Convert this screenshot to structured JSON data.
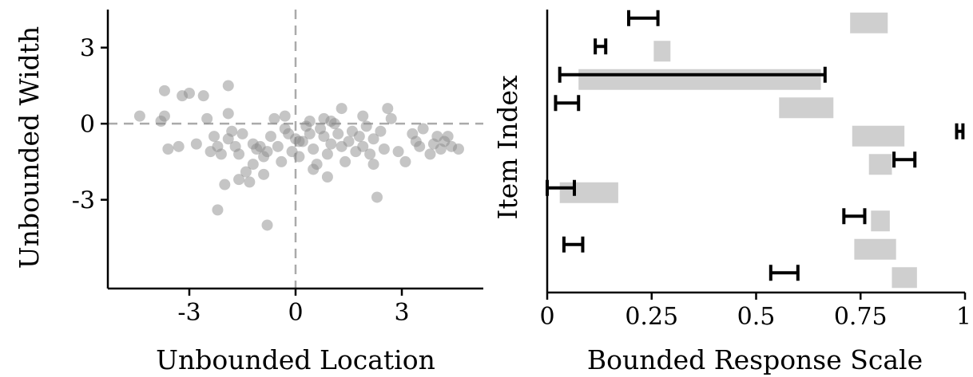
{
  "chart_data": [
    {
      "type": "scatter",
      "xlabel": "Unbounded Location",
      "ylabel": "Unbounded Width",
      "xlim": [
        -5.3,
        5.3
      ],
      "ylim": [
        -6.5,
        4.5
      ],
      "x_ticks": [
        -3,
        0,
        3
      ],
      "x_tick_labels": [
        "-3",
        "0",
        "3"
      ],
      "y_ticks": [
        3,
        0,
        -3
      ],
      "y_tick_labels": [
        "3",
        "0",
        "-3"
      ],
      "reference_lines": {
        "x": 0,
        "y": 0,
        "style": "dashed"
      },
      "point_color": "#8c8c8c",
      "points": [
        [
          -4.4,
          0.3
        ],
        [
          -3.8,
          0.1
        ],
        [
          -3.7,
          1.3
        ],
        [
          -3.6,
          -1.0
        ],
        [
          -3.7,
          0.3
        ],
        [
          -3.2,
          1.1
        ],
        [
          -3.0,
          1.2
        ],
        [
          -2.6,
          1.1
        ],
        [
          -2.5,
          0.2
        ],
        [
          -2.8,
          -0.8
        ],
        [
          -2.4,
          -1.1
        ],
        [
          -2.3,
          -0.5
        ],
        [
          -2.2,
          -0.9
        ],
        [
          -2.1,
          -1.2
        ],
        [
          -1.9,
          -0.6
        ],
        [
          -1.8,
          -0.3
        ],
        [
          -1.7,
          -0.9
        ],
        [
          -1.6,
          -1.2
        ],
        [
          -1.5,
          -0.4
        ],
        [
          -1.4,
          -1.9
        ],
        [
          -1.3,
          -2.3
        ],
        [
          -1.2,
          -0.8
        ],
        [
          -1.1,
          -1.0
        ],
        [
          -1.0,
          -0.9
        ],
        [
          -0.9,
          -1.3
        ],
        [
          -0.8,
          -1.1
        ],
        [
          -0.7,
          -0.5
        ],
        [
          -0.6,
          0.2
        ],
        [
          -0.5,
          -0.9
        ],
        [
          -0.4,
          -1.5
        ],
        [
          -0.3,
          -0.2
        ],
        [
          -0.2,
          -0.4
        ],
        [
          -0.1,
          -1.1
        ],
        [
          0.0,
          -0.6
        ],
        [
          0.1,
          -1.3
        ],
        [
          0.2,
          -0.7
        ],
        [
          0.3,
          -0.1
        ],
        [
          0.4,
          -0.4
        ],
        [
          0.5,
          -1.0
        ],
        [
          0.6,
          -1.6
        ],
        [
          0.7,
          -0.2
        ],
        [
          0.8,
          -0.5
        ],
        [
          0.9,
          -1.2
        ],
        [
          1.0,
          -0.8
        ],
        [
          1.1,
          0.0
        ],
        [
          1.2,
          -0.4
        ],
        [
          1.3,
          -0.9
        ],
        [
          1.4,
          -1.5
        ],
        [
          1.5,
          -0.7
        ],
        [
          1.6,
          -0.3
        ],
        [
          1.7,
          -1.1
        ],
        [
          1.8,
          -0.5
        ],
        [
          1.9,
          -0.9
        ],
        [
          2.0,
          -0.1
        ],
        [
          2.1,
          -1.2
        ],
        [
          2.2,
          -0.6
        ],
        [
          2.4,
          -0.3
        ],
        [
          2.5,
          -1.0
        ],
        [
          2.6,
          0.6
        ],
        [
          2.7,
          0.2
        ],
        [
          2.9,
          -1.1
        ],
        [
          3.1,
          -1.5
        ],
        [
          3.3,
          -0.4
        ],
        [
          3.4,
          -0.7
        ],
        [
          3.6,
          -0.2
        ],
        [
          3.8,
          -1.2
        ],
        [
          3.9,
          -0.8
        ],
        [
          4.0,
          -0.5
        ],
        [
          4.1,
          -1.0
        ],
        [
          4.2,
          -0.7
        ],
        [
          4.4,
          -0.9
        ],
        [
          4.6,
          -1.0
        ],
        [
          -2.0,
          -2.4
        ],
        [
          -2.2,
          -3.4
        ],
        [
          -0.8,
          -4.0
        ],
        [
          -1.9,
          1.5
        ],
        [
          -1.6,
          -2.2
        ],
        [
          -0.3,
          0.3
        ],
        [
          0.1,
          -0.7
        ],
        [
          0.5,
          -1.8
        ],
        [
          1.3,
          0.6
        ],
        [
          1.9,
          0.3
        ],
        [
          2.3,
          -2.9
        ],
        [
          0.9,
          -2.1
        ],
        [
          -1.2,
          -1.6
        ],
        [
          -1.9,
          0.4
        ],
        [
          -0.9,
          -2.0
        ],
        [
          -3.3,
          -0.9
        ],
        [
          2.2,
          -1.6
        ],
        [
          1.0,
          0.1
        ],
        [
          0.4,
          0.1
        ],
        [
          3.5,
          -0.9
        ],
        [
          4.3,
          -0.5
        ],
        [
          0.8,
          0.2
        ]
      ]
    },
    {
      "type": "interval",
      "xlabel": "Bounded Response Scale",
      "ylabel": "Item Index",
      "xlim": [
        0,
        1
      ],
      "x_ticks": [
        0,
        0.25,
        0.5,
        0.75,
        1
      ],
      "x_tick_labels": [
        "0",
        "0.25",
        "0.5",
        "0.75",
        "1"
      ],
      "bar_color": "#cfcfcf",
      "errorbar_color": "#000000",
      "rows": [
        {
          "bar": [
            0.725,
            0.815
          ],
          "err": [
            0.195,
            0.265
          ]
        },
        {
          "bar": [
            0.255,
            0.295
          ],
          "err": [
            0.115,
            0.14
          ]
        },
        {
          "bar": [
            0.075,
            0.655
          ],
          "err": [
            0.03,
            0.665
          ]
        },
        {
          "bar": [
            0.555,
            0.685
          ],
          "err": [
            0.02,
            0.075
          ]
        },
        {
          "bar": [
            0.73,
            0.855
          ],
          "err": [
            0.98,
            0.995
          ]
        },
        {
          "bar": [
            0.77,
            0.825
          ],
          "err": [
            0.83,
            0.88
          ]
        },
        {
          "bar": [
            0.03,
            0.17
          ],
          "err": [
            0.0,
            0.065
          ]
        },
        {
          "bar": [
            0.775,
            0.82
          ],
          "err": [
            0.71,
            0.76
          ]
        },
        {
          "bar": [
            0.735,
            0.835
          ],
          "err": [
            0.04,
            0.085
          ]
        },
        {
          "bar": [
            0.825,
            0.885
          ],
          "err": [
            0.535,
            0.6
          ]
        }
      ]
    }
  ]
}
